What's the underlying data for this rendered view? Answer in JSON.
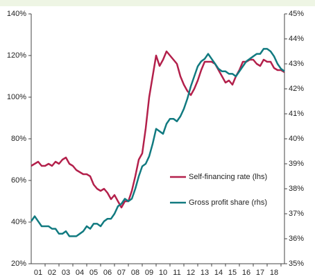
{
  "chart_data": {
    "type": "line",
    "x": [
      0.5,
      0.75,
      1,
      1.25,
      1.5,
      1.75,
      2,
      2.25,
      2.5,
      2.75,
      3,
      3.25,
      3.5,
      3.75,
      4,
      4.25,
      4.5,
      4.75,
      5,
      5.25,
      5.5,
      5.75,
      6,
      6.25,
      6.5,
      6.75,
      7,
      7.25,
      7.5,
      7.75,
      8,
      8.25,
      8.5,
      8.75,
      9,
      9.25,
      9.5,
      9.75,
      10,
      10.25,
      10.5,
      10.75,
      11,
      11.25,
      11.5,
      11.75,
      12,
      12.25,
      12.5,
      12.75,
      13,
      13.25,
      13.5,
      13.75,
      14,
      14.25,
      14.5,
      14.75,
      15,
      15.25,
      15.5,
      15.75,
      16,
      16.25,
      16.5,
      16.75,
      17,
      17.25,
      17.5,
      17.75,
      18,
      18.25,
      18.5,
      18.75
    ],
    "xlim": [
      0.5,
      18.75
    ],
    "xticks": [
      {
        "value": 1,
        "label": "01"
      },
      {
        "value": 2,
        "label": "02"
      },
      {
        "value": 3,
        "label": "03"
      },
      {
        "value": 4,
        "label": "04"
      },
      {
        "value": 5,
        "label": "05"
      },
      {
        "value": 6,
        "label": "06"
      },
      {
        "value": 7,
        "label": "07"
      },
      {
        "value": 8,
        "label": "08"
      },
      {
        "value": 9,
        "label": "09"
      },
      {
        "value": 10,
        "label": "10"
      },
      {
        "value": 11,
        "label": "11"
      },
      {
        "value": 12,
        "label": "12"
      },
      {
        "value": 13,
        "label": "13"
      },
      {
        "value": 14,
        "label": "14"
      },
      {
        "value": 15,
        "label": "15"
      },
      {
        "value": 16,
        "label": "16"
      },
      {
        "value": 17,
        "label": "17"
      },
      {
        "value": 18,
        "label": "18"
      }
    ],
    "ylim": [
      20,
      140
    ],
    "yticks": [
      {
        "value": 20,
        "label": "20%"
      },
      {
        "value": 40,
        "label": "40%"
      },
      {
        "value": 60,
        "label": "60%"
      },
      {
        "value": 80,
        "label": "80%"
      },
      {
        "value": 100,
        "label": "100%"
      },
      {
        "value": 120,
        "label": "120%"
      },
      {
        "value": 140,
        "label": "140%"
      }
    ],
    "y2lim": [
      35,
      45
    ],
    "y2ticks": [
      {
        "value": 35,
        "label": "35%"
      },
      {
        "value": 36,
        "label": "36%"
      },
      {
        "value": 37,
        "label": "37%"
      },
      {
        "value": 38,
        "label": "38%"
      },
      {
        "value": 39,
        "label": "39%"
      },
      {
        "value": 40,
        "label": "40%"
      },
      {
        "value": 41,
        "label": "41%"
      },
      {
        "value": 42,
        "label": "42%"
      },
      {
        "value": 43,
        "label": "43%"
      },
      {
        "value": 44,
        "label": "44%"
      },
      {
        "value": 45,
        "label": "45%"
      }
    ],
    "series": [
      {
        "name": "Self-financing rate (lhs)",
        "color": "#b3204b",
        "axis": "y",
        "values": [
          67,
          68,
          69,
          67,
          67,
          68,
          67,
          69,
          68,
          70,
          71,
          68,
          67,
          65,
          64,
          63,
          63,
          62,
          58,
          56,
          55,
          56,
          54,
          51,
          53,
          50,
          47,
          50,
          50,
          55,
          62,
          70,
          73,
          85,
          100,
          110,
          120,
          115,
          118,
          122,
          120,
          118,
          116,
          110,
          106,
          103,
          101,
          104,
          108,
          113,
          117,
          117,
          117,
          116,
          113,
          110,
          107,
          108,
          106,
          110,
          113,
          117,
          117,
          118,
          118,
          116,
          115,
          118,
          117,
          117,
          114,
          113,
          113,
          112
        ]
      },
      {
        "name": "Gross profit share (rhs)",
        "color": "#117a80",
        "axis": "y2",
        "values": [
          36.7,
          36.9,
          36.7,
          36.5,
          36.5,
          36.5,
          36.4,
          36.4,
          36.2,
          36.2,
          36.3,
          36.1,
          36.1,
          36.1,
          36.2,
          36.3,
          36.5,
          36.4,
          36.6,
          36.6,
          36.5,
          36.7,
          36.8,
          36.8,
          37.0,
          37.3,
          37.4,
          37.6,
          37.5,
          37.6,
          38.0,
          38.5,
          38.9,
          39.0,
          39.3,
          39.8,
          40.4,
          40.3,
          40.2,
          40.6,
          40.8,
          40.8,
          40.7,
          40.9,
          41.2,
          41.6,
          42.1,
          42.5,
          42.9,
          43.1,
          43.2,
          43.4,
          43.2,
          43.0,
          42.8,
          42.7,
          42.7,
          42.6,
          42.6,
          42.5,
          42.7,
          42.9,
          43.1,
          43.2,
          43.3,
          43.4,
          43.4,
          43.6,
          43.6,
          43.5,
          43.3,
          43.0,
          42.8,
          42.7
        ]
      }
    ]
  }
}
